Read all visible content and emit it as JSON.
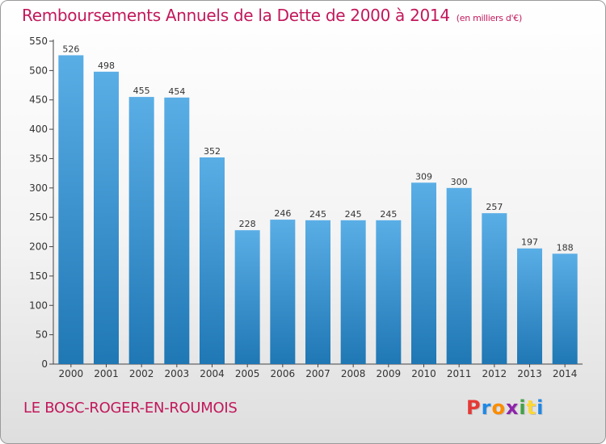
{
  "title": "Remboursements Annuels de la Dette de 2000 à 2014",
  "unit": "(en milliers d'€)",
  "commune": "LE BOSC-ROGER-EN-ROUMOIS",
  "brand": {
    "letters": [
      "P",
      "r",
      "o",
      "x",
      "i",
      "t",
      "i"
    ],
    "colors": [
      "#e53935",
      "#1e88e5",
      "#fb8c00",
      "#8e24aa",
      "#43a047",
      "#fdd835",
      "#1e88e5"
    ]
  },
  "colors": {
    "title": "#c2185b",
    "bar_top": "#5aaee6",
    "bar_bottom": "#1f77b4"
  },
  "chart_data": {
    "type": "bar",
    "categories": [
      "2000",
      "2001",
      "2002",
      "2003",
      "2004",
      "2005",
      "2006",
      "2007",
      "2008",
      "2009",
      "2010",
      "2011",
      "2012",
      "2013",
      "2014"
    ],
    "values": [
      526,
      498,
      455,
      454,
      352,
      228,
      246,
      245,
      245,
      245,
      309,
      300,
      257,
      197,
      188
    ],
    "ylim": [
      0,
      550
    ],
    "yticks": [
      0,
      50,
      100,
      150,
      200,
      250,
      300,
      350,
      400,
      450,
      500,
      550
    ],
    "grid": false
  }
}
